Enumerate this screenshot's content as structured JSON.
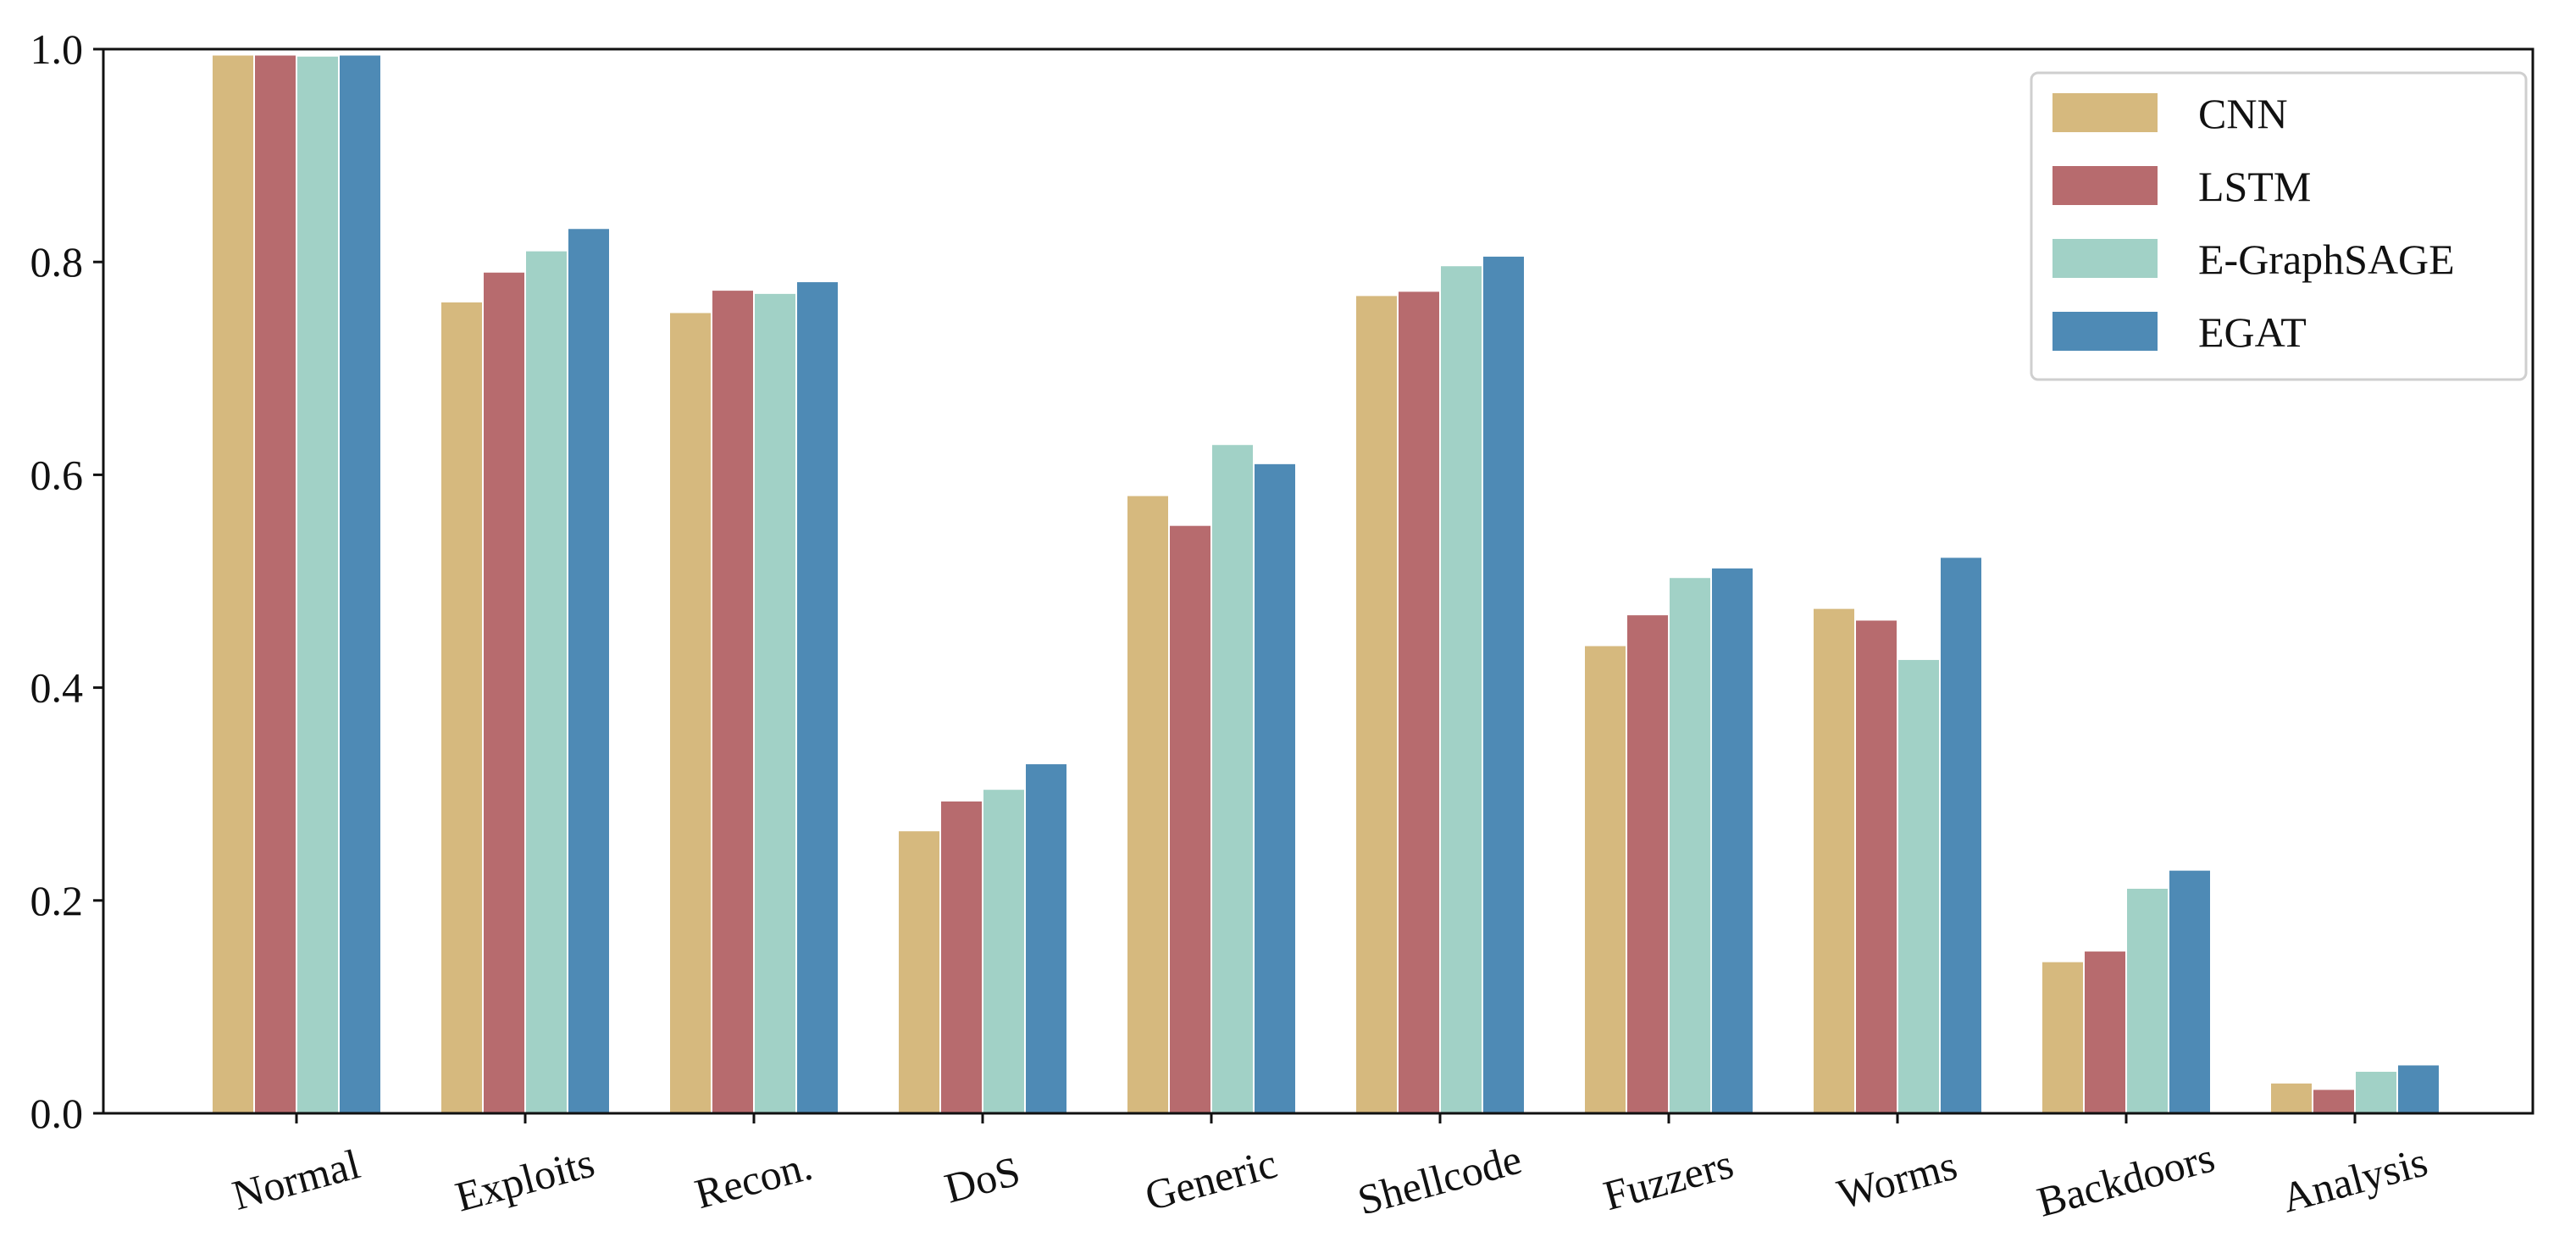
{
  "chart_data": {
    "type": "bar",
    "title": "",
    "xlabel": "",
    "ylabel": "",
    "categories": [
      "Normal",
      "Exploits",
      "Recon.",
      "DoS",
      "Generic",
      "Shellcode",
      "Fuzzers",
      "Worms",
      "Backdoors",
      "Analysis"
    ],
    "series": [
      {
        "name": "CNN",
        "color": "#D6B97E",
        "values": [
          0.994,
          0.762,
          0.752,
          0.265,
          0.58,
          0.768,
          0.439,
          0.474,
          0.142,
          0.028
        ]
      },
      {
        "name": "LSTM",
        "color": "#B76B6E",
        "values": [
          0.994,
          0.79,
          0.773,
          0.293,
          0.552,
          0.772,
          0.468,
          0.463,
          0.152,
          0.022
        ]
      },
      {
        "name": "E-GraphSAGE",
        "color": "#A1D1C6",
        "values": [
          0.993,
          0.81,
          0.77,
          0.304,
          0.628,
          0.796,
          0.503,
          0.426,
          0.211,
          0.039
        ]
      },
      {
        "name": "EGAT",
        "color": "#4E8AB5",
        "values": [
          0.994,
          0.831,
          0.781,
          0.328,
          0.61,
          0.805,
          0.512,
          0.522,
          0.228,
          0.045
        ]
      }
    ],
    "ylim": [
      0,
      1.0
    ],
    "yticks": [
      "0.0",
      "0.2",
      "0.4",
      "0.6",
      "0.8",
      "1.0"
    ],
    "x_tick_rotation": "slanted",
    "grid": false,
    "legend_position": "top-right"
  }
}
